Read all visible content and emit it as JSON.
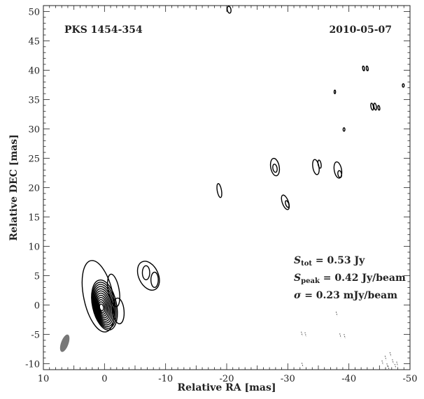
{
  "chart_data": {
    "type": "contour",
    "source_label": "PKS 1454-354",
    "date_label": "2010-05-07",
    "xlabel": "Relative RA [mas]",
    "ylabel": "Relative DEC [mas]",
    "xlim": [
      10,
      -50
    ],
    "ylim": [
      -11,
      51
    ],
    "x_ticks": [
      10,
      0,
      -10,
      -20,
      -30,
      -40,
      -50
    ],
    "x_tick_labels": [
      "10",
      "0",
      "-10",
      "-20",
      "-30",
      "-40",
      "-50"
    ],
    "y_ticks": [
      -10,
      -5,
      0,
      5,
      10,
      15,
      20,
      25,
      30,
      35,
      40,
      45,
      50
    ],
    "y_tick_labels": [
      "-10",
      "-5",
      "0",
      "5",
      "10",
      "15",
      "20",
      "25",
      "30",
      "35",
      "40",
      "45",
      "50"
    ],
    "stats": {
      "s_tot_symbol": "S",
      "s_tot_sub": "tot",
      "s_tot_value": " = 0.53 Jy",
      "s_peak_symbol": "S",
      "s_peak_sub": "peak",
      "s_peak_value": " = 0.42 Jy/beam",
      "sigma_symbol": "σ",
      "sigma_value": " = 0.23 mJy/beam"
    },
    "beam": {
      "x": 6.5,
      "y": -6.5,
      "major": 3.0,
      "minor": 1.0,
      "pa_deg": 20
    },
    "core": {
      "x": 0.0,
      "y": 0.0,
      "levels": 12,
      "max_rx": 1.8,
      "max_ry": 4.1,
      "tilt_deg": -12
    },
    "components": [
      {
        "x": 1.0,
        "y": 1.5,
        "rx": 2.4,
        "ry": 6.2,
        "tilt": -12
      },
      {
        "x": -1.5,
        "y": 2.5,
        "rx": 0.9,
        "ry": 2.8,
        "tilt": -10
      },
      {
        "x": -2.3,
        "y": -1.0,
        "rx": 0.9,
        "ry": 2.2,
        "tilt": -5
      },
      {
        "x": -7.2,
        "y": 5.0,
        "rx": 1.6,
        "ry": 2.6,
        "tilt": -25
      },
      {
        "x": -6.8,
        "y": 5.5,
        "rx": 0.6,
        "ry": 1.2,
        "tilt": 0
      },
      {
        "x": -8.2,
        "y": 4.3,
        "rx": 0.6,
        "ry": 1.3,
        "tilt": 0
      },
      {
        "x": -18.8,
        "y": 19.5,
        "rx": 0.35,
        "ry": 1.2,
        "tilt": -10
      },
      {
        "x": -27.9,
        "y": 23.5,
        "rx": 0.7,
        "ry": 1.5,
        "tilt": -10
      },
      {
        "x": -27.9,
        "y": 23.3,
        "rx": 0.35,
        "ry": 0.7,
        "tilt": -10
      },
      {
        "x": -29.6,
        "y": 17.5,
        "rx": 0.5,
        "ry": 1.3,
        "tilt": -20
      },
      {
        "x": -29.9,
        "y": 17.2,
        "rx": 0.25,
        "ry": 0.6,
        "tilt": -20
      },
      {
        "x": -34.6,
        "y": 23.5,
        "rx": 0.5,
        "ry": 1.3,
        "tilt": -10
      },
      {
        "x": -35.2,
        "y": 24.0,
        "rx": 0.25,
        "ry": 0.7,
        "tilt": -10
      },
      {
        "x": -38.2,
        "y": 23.0,
        "rx": 0.6,
        "ry": 1.4,
        "tilt": -10
      },
      {
        "x": -38.5,
        "y": 22.3,
        "rx": 0.3,
        "ry": 0.6,
        "tilt": -10
      },
      {
        "x": -20.4,
        "y": 50.3,
        "rx": 0.3,
        "ry": 0.6,
        "tilt": -10
      },
      {
        "x": -37.7,
        "y": 36.3,
        "rx": 0.12,
        "ry": 0.3,
        "tilt": 0
      },
      {
        "x": -39.2,
        "y": 29.9,
        "rx": 0.15,
        "ry": 0.3,
        "tilt": 0
      },
      {
        "x": -42.4,
        "y": 40.3,
        "rx": 0.15,
        "ry": 0.4,
        "tilt": -10
      },
      {
        "x": -43.0,
        "y": 40.3,
        "rx": 0.15,
        "ry": 0.4,
        "tilt": -10
      },
      {
        "x": -43.8,
        "y": 33.8,
        "rx": 0.2,
        "ry": 0.6,
        "tilt": -10
      },
      {
        "x": -44.3,
        "y": 33.8,
        "rx": 0.2,
        "ry": 0.6,
        "tilt": -10
      },
      {
        "x": -44.9,
        "y": 33.6,
        "rx": 0.15,
        "ry": 0.4,
        "tilt": -10
      },
      {
        "x": -48.9,
        "y": 37.4,
        "rx": 0.15,
        "ry": 0.3,
        "tilt": 0
      }
    ],
    "negative_marks": [
      {
        "x": -32.3,
        "y": -4.9
      },
      {
        "x": -32.9,
        "y": -5.0
      },
      {
        "x": -38.0,
        "y": -1.5
      },
      {
        "x": -38.6,
        "y": -5.2
      },
      {
        "x": -39.3,
        "y": -5.3
      },
      {
        "x": -32.4,
        "y": -10.2
      },
      {
        "x": -45.5,
        "y": -9.8
      },
      {
        "x": -46.0,
        "y": -9.0
      },
      {
        "x": -46.3,
        "y": -10.3
      },
      {
        "x": -46.8,
        "y": -8.4
      },
      {
        "x": -47.2,
        "y": -9.6
      },
      {
        "x": -47.6,
        "y": -10.4
      },
      {
        "x": -47.9,
        "y": -10.0
      },
      {
        "x": -46.5,
        "y": -10.7
      }
    ]
  }
}
